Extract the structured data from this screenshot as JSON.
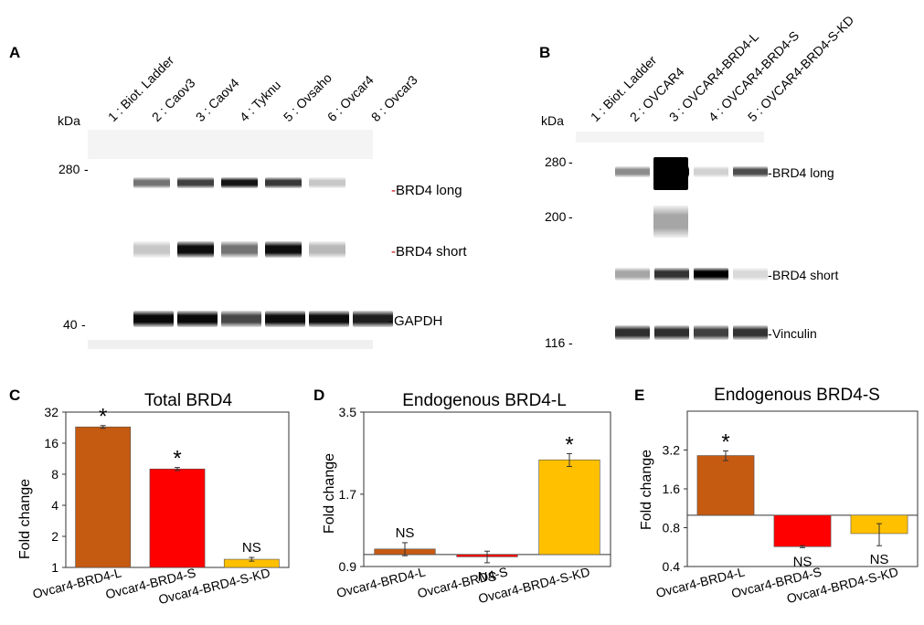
{
  "panel_a": {
    "letter": "A",
    "kda": "kDa",
    "lanes": [
      "1 : Biot. Ladder",
      "2 : Caov3",
      "3 : Caov4",
      "4 : Tyknu",
      "5 : Ovsaho",
      "6 : Ovcar4",
      "8 : Ovcar3"
    ],
    "markers": [
      "280",
      "40"
    ],
    "band_labels": [
      "BRD4 long",
      "BRD4 short",
      "GAPDH"
    ],
    "band_intensity": {
      "brd4_long": [
        0,
        0.55,
        0.75,
        0.92,
        0.78,
        0.22,
        0
      ],
      "brd4_short": [
        0,
        0.22,
        0.95,
        0.55,
        0.95,
        0.28,
        0
      ],
      "gapdh": [
        0,
        0.97,
        0.97,
        0.72,
        0.95,
        0.95,
        0.88
      ]
    }
  },
  "panel_b": {
    "letter": "B",
    "kda": "kDa",
    "lanes": [
      "1 : Biot. Ladder",
      "2 : OVCAR4",
      "3 : OVCAR4-BRD4-L",
      "4 : OVCAR4-BRD4-S",
      "5 : OVCAR4-BRD4-S-KD"
    ],
    "markers": [
      "280",
      "200",
      "116"
    ],
    "band_labels": [
      "BRD4 long",
      "BRD4 short",
      "Vinculin"
    ],
    "band_intensity": {
      "brd4_long": [
        0,
        0.45,
        1.0,
        0.18,
        0.7
      ],
      "brd4_short": [
        0,
        0.35,
        0.8,
        1.0,
        0.15
      ],
      "vinculin": [
        0,
        0.82,
        0.82,
        0.75,
        0.8
      ]
    }
  },
  "charts": [
    {
      "letter": "C",
      "chart_data": {
        "type": "bar",
        "title": "Total BRD4",
        "ylabel": "Fold change",
        "xlabel": "",
        "scale": "log2",
        "ylim": [
          1,
          32
        ],
        "yticks": [
          "32",
          "16",
          "8",
          "4",
          "2",
          "1"
        ],
        "categories": [
          "Ovcar4-BRD4-L",
          "Ovcar4-BRD4-S",
          "Ovcar4-BRD4-S-KD"
        ],
        "values": [
          23,
          9,
          1.2
        ],
        "errors": [
          0.7,
          0.3,
          0.05
        ],
        "annotations": [
          "*",
          "*",
          "NS"
        ],
        "colors": [
          "#c55a11",
          "#ff0000",
          "#ffc000"
        ]
      }
    },
    {
      "letter": "D",
      "chart_data": {
        "type": "bar",
        "title": "Endogenous BRD4-L",
        "ylabel": "Fold change",
        "xlabel": "",
        "scale": "log",
        "baseline": 1.0,
        "ylim": [
          0.9,
          3.5
        ],
        "yticks": [
          "3.5",
          "1.7",
          "0.9"
        ],
        "categories": [
          "Ovcar4-BRD4-L",
          "Ovcar4-BRD4-S",
          "Ovcar4-BRD4-S-KD"
        ],
        "values": [
          1.05,
          0.98,
          2.3
        ],
        "errors": [
          0.06,
          0.05,
          0.13
        ],
        "annotations": [
          "NS",
          "NS",
          "*"
        ],
        "colors": [
          "#c55a11",
          "#ff0000",
          "#ffc000"
        ]
      }
    },
    {
      "letter": "E",
      "chart_data": {
        "type": "bar",
        "title": "Endogenous BRD4-S",
        "ylabel": "Fold change",
        "xlabel": "",
        "scale": "log2",
        "baseline": 1.0,
        "ylim": [
          0.4,
          6.4
        ],
        "yticks": [
          "3.2",
          "1.6",
          "0.8",
          "0.4"
        ],
        "categories": [
          "Ovcar4-BRD4-L",
          "Ovcar4-BRD4-S",
          "Ovcar4-BRD4-S-KD"
        ],
        "values": [
          2.9,
          0.57,
          0.72
        ],
        "errors": [
          0.25,
          0.01,
          0.14
        ],
        "annotations": [
          "*",
          "NS",
          "NS"
        ],
        "colors": [
          "#c55a11",
          "#ff0000",
          "#ffc000"
        ]
      }
    }
  ]
}
